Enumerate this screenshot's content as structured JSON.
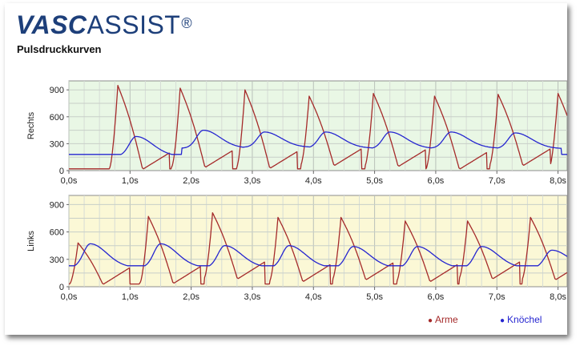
{
  "header": {
    "logo_bold": "VASC",
    "logo_light": "ASSIST",
    "logo_reg": "®",
    "subtitle": "Pulsdruckkurven"
  },
  "colors": {
    "arm_series": "#a52a2a",
    "ankle_series": "#2525d0",
    "right_panel_bg": "#e9f7e5",
    "left_panel_bg": "#fbf8d6",
    "grid": "#c8c8c8",
    "logo": "#1d3f7a"
  },
  "legend": {
    "arme": "Arme",
    "knoechel": "Knöchel"
  },
  "chart_data": [
    {
      "type": "line",
      "ylabel": "Rechts",
      "xlabel": "",
      "x_ticks": [
        "0,0s",
        "1,0s",
        "2,0s",
        "3,0s",
        "4,0s",
        "5,0s",
        "6,0s",
        "7,0s",
        "8,0s"
      ],
      "y_ticks": [
        "0",
        "300",
        "600",
        "900"
      ],
      "xlim": [
        0,
        8.15
      ],
      "ylim": [
        0,
        1000
      ],
      "grid": true,
      "series": [
        {
          "name": "Arme",
          "color": "#a52a2a",
          "beat_times": [
            0.8,
            1.82,
            2.88,
            3.93,
            4.98,
            5.98,
            7.02,
            8.0
          ],
          "beat_peaks": [
            950,
            920,
            900,
            830,
            860,
            830,
            850,
            860
          ],
          "beat_min": [
            20,
            40,
            30,
            60,
            50,
            20,
            60,
            40
          ]
        },
        {
          "name": "Knöchel",
          "color": "#2525d0",
          "beat_times": [
            1.1,
            2.2,
            3.2,
            4.2,
            5.25,
            6.25,
            7.3
          ],
          "beat_peaks": [
            380,
            450,
            430,
            430,
            430,
            430,
            420
          ],
          "beat_min": [
            160,
            250,
            260,
            250,
            245,
            250,
            245
          ]
        }
      ]
    },
    {
      "type": "line",
      "ylabel": "Links",
      "xlabel": "",
      "x_ticks": [
        "0,0s",
        "1,0s",
        "2,0s",
        "3,0s",
        "4,0s",
        "5,0s",
        "6,0s",
        "7,0s",
        "8,0s"
      ],
      "y_ticks": [
        "0",
        "300",
        "600",
        "900"
      ],
      "xlim": [
        0,
        8.15
      ],
      "ylim": [
        0,
        1000
      ],
      "grid": true,
      "series": [
        {
          "name": "Arme",
          "color": "#a52a2a",
          "beat_times": [
            0.15,
            1.3,
            2.35,
            3.42,
            4.45,
            5.5,
            6.52,
            7.55
          ],
          "beat_peaks": [
            480,
            770,
            810,
            760,
            760,
            720,
            720,
            760
          ],
          "beat_min": [
            30,
            40,
            90,
            60,
            80,
            60,
            90,
            80
          ]
        },
        {
          "name": "Knöchel",
          "color": "#2525d0",
          "beat_times": [
            0.35,
            1.5,
            2.55,
            3.6,
            4.65,
            5.7,
            6.75,
            7.9
          ],
          "beat_peaks": [
            470,
            470,
            450,
            450,
            440,
            440,
            440,
            400
          ],
          "beat_min": [
            210,
            210,
            210,
            205,
            205,
            205,
            205,
            205
          ]
        }
      ]
    }
  ]
}
